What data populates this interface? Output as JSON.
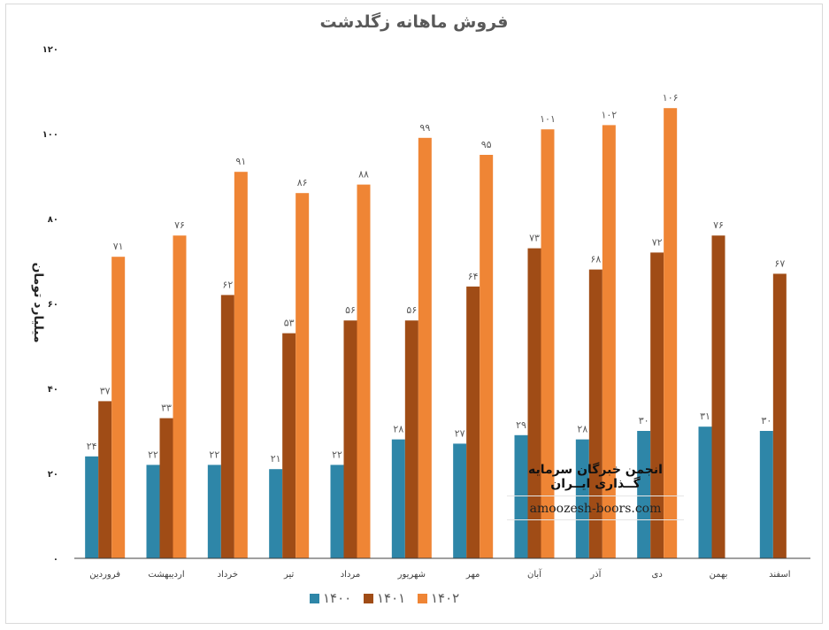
{
  "chart_data": {
    "type": "bar",
    "title": "فروش ماهانه زگلدشت",
    "ylabel": "میلیارد تومان",
    "xlabel": "",
    "ylim": [
      0,
      120
    ],
    "yticks": [
      "۰",
      "۲۰",
      "۴۰",
      "۶۰",
      "۸۰",
      "۱۰۰",
      "۱۲۰"
    ],
    "ytick_values": [
      0,
      20,
      40,
      60,
      80,
      100,
      120
    ],
    "categories": [
      "فروردین",
      "اردیبهشت",
      "خرداد",
      "تیر",
      "مرداد",
      "شهریور",
      "مهر",
      "آبان",
      "آذر",
      "دی",
      "بهمن",
      "اسفند"
    ],
    "series": [
      {
        "name": "۱۴۰۰",
        "color": "#2e86a8",
        "values": [
          24,
          22,
          22,
          21,
          22,
          28,
          27,
          29,
          28,
          30,
          31,
          30
        ],
        "labels": [
          "۲۴",
          "۲۲",
          "۲۲",
          "۲۱",
          "۲۲",
          "۲۸",
          "۲۷",
          "۲۹",
          "۲۸",
          "۳۰",
          "۳۱",
          "۳۰"
        ]
      },
      {
        "name": "۱۴۰۱",
        "color": "#a04c16",
        "values": [
          37,
          33,
          62,
          53,
          56,
          56,
          64,
          73,
          68,
          72,
          76,
          67
        ],
        "labels": [
          "۳۷",
          "۳۳",
          "۶۲",
          "۵۳",
          "۵۶",
          "۵۶",
          "۶۴",
          "۷۳",
          "۶۸",
          "۷۲",
          "۷۶",
          "۶۷"
        ]
      },
      {
        "name": "۱۴۰۲",
        "color": "#ef8535",
        "values": [
          71,
          76,
          91,
          86,
          88,
          99,
          95,
          101,
          102,
          106,
          null,
          null
        ],
        "labels": [
          "۷۱",
          "۷۶",
          "۹۱",
          "۸۶",
          "۸۸",
          "۹۹",
          "۹۵",
          "۱۰۱",
          "۱۰۲",
          "۱۰۶",
          "",
          ""
        ]
      }
    ],
    "legend_position": "bottom",
    "grid": false
  },
  "watermark": {
    "line1": "انجمن خبرگان سرمایه گــذاری ایــران",
    "line2": "amoozesh-boors.com"
  }
}
